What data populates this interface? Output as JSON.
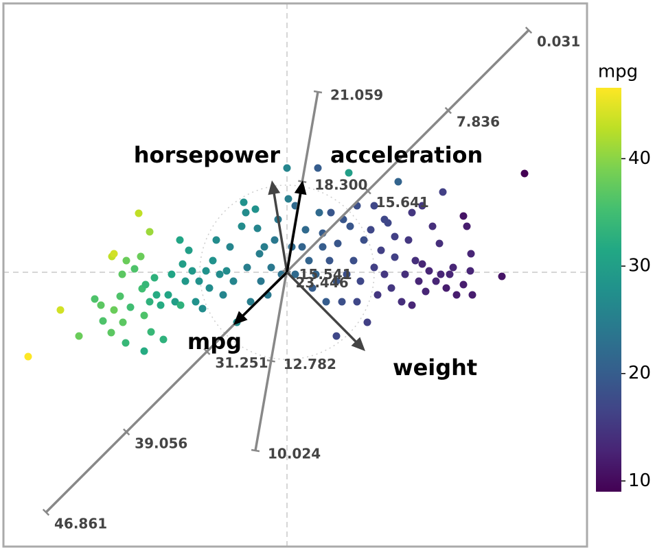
{
  "chart_data": {
    "type": "biplot",
    "xlim": [
      -4.13,
      4.37
    ],
    "ylim": [
      -4.0,
      3.92
    ],
    "x": [
      -3.77,
      -3.3,
      -3.03,
      -2.55,
      -2.52,
      -2.16,
      -2.0,
      -2.8,
      -2.71,
      -2.68,
      -2.56,
      -2.52,
      -2.43,
      -2.39,
      -2.34,
      -2.4,
      -2.28,
      -2.22,
      -2.13,
      -2.11,
      -2.08,
      -2.06,
      -2.0,
      -1.98,
      -1.93,
      -1.9,
      -1.84,
      -1.8,
      -2.08,
      -2.35,
      -1.73,
      -1.68,
      -1.63,
      -1.55,
      -1.56,
      -1.52,
      -1.48,
      -1.43,
      -1.38,
      -1.28,
      -1.33,
      -1.23,
      -1.18,
      -1.13,
      -1.08,
      -1.03,
      -0.98,
      -0.93,
      -0.88,
      -0.83,
      -0.78,
      -0.73,
      -0.66,
      -0.63,
      -0.6,
      -0.58,
      -0.53,
      -0.46,
      -0.43,
      -0.4,
      -0.38,
      -0.33,
      -0.28,
      -0.23,
      -0.18,
      -0.13,
      -0.08,
      0.0,
      0.02,
      0.12,
      0.22,
      0.27,
      0.32,
      0.37,
      0.45,
      0.47,
      0.52,
      0.57,
      0.62,
      0.72,
      0.74,
      0.8,
      0.87,
      0.9,
      0.92,
      0.97,
      1.02,
      1.07,
      1.12,
      1.17,
      1.22,
      1.27,
      1.32,
      1.37,
      1.42,
      1.47,
      1.52,
      1.57,
      1.62,
      1.67,
      1.72,
      1.77,
      1.82,
      1.87,
      1.92,
      1.97,
      2.02,
      2.07,
      2.12,
      2.17,
      2.22,
      2.27,
      2.32,
      2.37,
      2.42,
      2.47,
      2.57,
      2.62,
      2.67,
      2.7,
      2.68,
      2.57,
      3.13,
      3.46,
      1.82,
      1.57,
      1.42,
      1.27,
      1.02,
      0.82,
      0.64,
      0.52,
      0.72,
      0.42,
      0.12,
      0.07,
      1.97,
      2.24
    ],
    "y": [
      -1.23,
      -0.55,
      -0.93,
      0.23,
      0.27,
      0.86,
      0.59,
      -0.39,
      -0.48,
      -0.71,
      -0.88,
      -0.55,
      -0.35,
      -0.73,
      0.17,
      -0.03,
      -0.51,
      0.05,
      0.23,
      -0.24,
      -0.63,
      -0.18,
      -0.43,
      -0.87,
      -0.08,
      -0.33,
      -0.48,
      -0.98,
      -1.15,
      -1.03,
      -0.33,
      -0.03,
      -0.43,
      -0.48,
      0.47,
      0.12,
      -0.13,
      0.32,
      0.02,
      -0.13,
      -0.43,
      -0.53,
      0.02,
      -0.23,
      0.17,
      0.47,
      -0.03,
      -0.33,
      0.02,
      0.37,
      -0.13,
      -0.73,
      0.67,
      1.02,
      0.87,
      0.07,
      -0.43,
      0.92,
      0.64,
      0.27,
      -0.13,
      0.37,
      -0.33,
      0.07,
      0.47,
      0.77,
      -0.03,
      1.52,
      1.07,
      0.97,
      0.37,
      0.62,
      0.17,
      -0.23,
      1.52,
      0.87,
      0.37,
      -0.43,
      0.17,
      -0.93,
      0.42,
      -0.43,
      -0.03,
      1.45,
      0.67,
      0.17,
      -0.43,
      -0.13,
      0.47,
      -0.73,
      0.62,
      0.07,
      -0.33,
      0.32,
      -0.03,
      0.72,
      -0.23,
      0.22,
      1.32,
      -0.43,
      -0.03,
      0.47,
      -0.48,
      0.17,
      -0.13,
      0.97,
      -0.28,
      0.02,
      0.67,
      -0.13,
      0.42,
      1.17,
      -0.23,
      -0.03,
      0.07,
      -0.33,
      0.82,
      0.67,
      0.02,
      -0.33,
      0.27,
      -0.18,
      -0.06,
      1.44,
      0.87,
      0.52,
      0.77,
      0.97,
      0.97,
      0.77,
      0.87,
      0.57,
      -0.13,
      -0.03,
      -0.03,
      0.37,
      0.12,
      -0.03
    ],
    "c": [
      46.6,
      44,
      38,
      43,
      44,
      43,
      41,
      36,
      37,
      36,
      37,
      38,
      36,
      37,
      38,
      37,
      35,
      36,
      38,
      35,
      36,
      34,
      33,
      34,
      33,
      32,
      32,
      33,
      32,
      34,
      31,
      31,
      30,
      33,
      31,
      30,
      29,
      30,
      29,
      28,
      28,
      27,
      28,
      27,
      28,
      27,
      27,
      26,
      27,
      26,
      26,
      27,
      27,
      28,
      27,
      25,
      25,
      28,
      26,
      25,
      24,
      25,
      24,
      24,
      24,
      24,
      23,
      26,
      25,
      22,
      21,
      22,
      21,
      20,
      20,
      22,
      20,
      20,
      19,
      17,
      19,
      18,
      18,
      30,
      19,
      18,
      17,
      17,
      18,
      16,
      17,
      16,
      15,
      16,
      15,
      17,
      15,
      16,
      21,
      14,
      14,
      15,
      13,
      14,
      13,
      15,
      13,
      13,
      14,
      13,
      14,
      16,
      12,
      13,
      13,
      12,
      11,
      12,
      13,
      12,
      13,
      12,
      11,
      9,
      15,
      16,
      17,
      17,
      18,
      19,
      19,
      20,
      19,
      21,
      22,
      22,
      13,
      13
    ],
    "circle_radius": 1.27,
    "loadings": [
      {
        "name": "horsepower",
        "x": -0.22,
        "y": 1.34,
        "color": "#444444"
      },
      {
        "name": "acceleration",
        "x": 0.23,
        "y": 1.34,
        "color": "#000000"
      },
      {
        "name": "mpg",
        "x": -0.78,
        "y": -0.77,
        "color": "#000000"
      },
      {
        "name": "weight",
        "x": 1.14,
        "y": -1.15,
        "color": "#444444"
      }
    ],
    "calibrated_axes": [
      {
        "start": [
          -3.51,
          -3.5
        ],
        "end": [
          3.52,
          3.53
        ],
        "ticks": [
          46.861,
          39.056,
          31.251,
          23.446,
          15.641,
          7.836,
          0.031
        ]
      },
      {
        "start": [
          0.45,
          2.63
        ],
        "end": [
          -0.46,
          -2.6
        ],
        "ticks": [
          21.059,
          {
            "value": 18.3,
            "label": "18.300"
          },
          15.541,
          12.782,
          10.024
        ]
      }
    ],
    "colorbar": {
      "title": "mpg",
      "lim": [
        9,
        46.6
      ],
      "ticks": [
        10,
        20,
        30,
        40
      ]
    }
  }
}
